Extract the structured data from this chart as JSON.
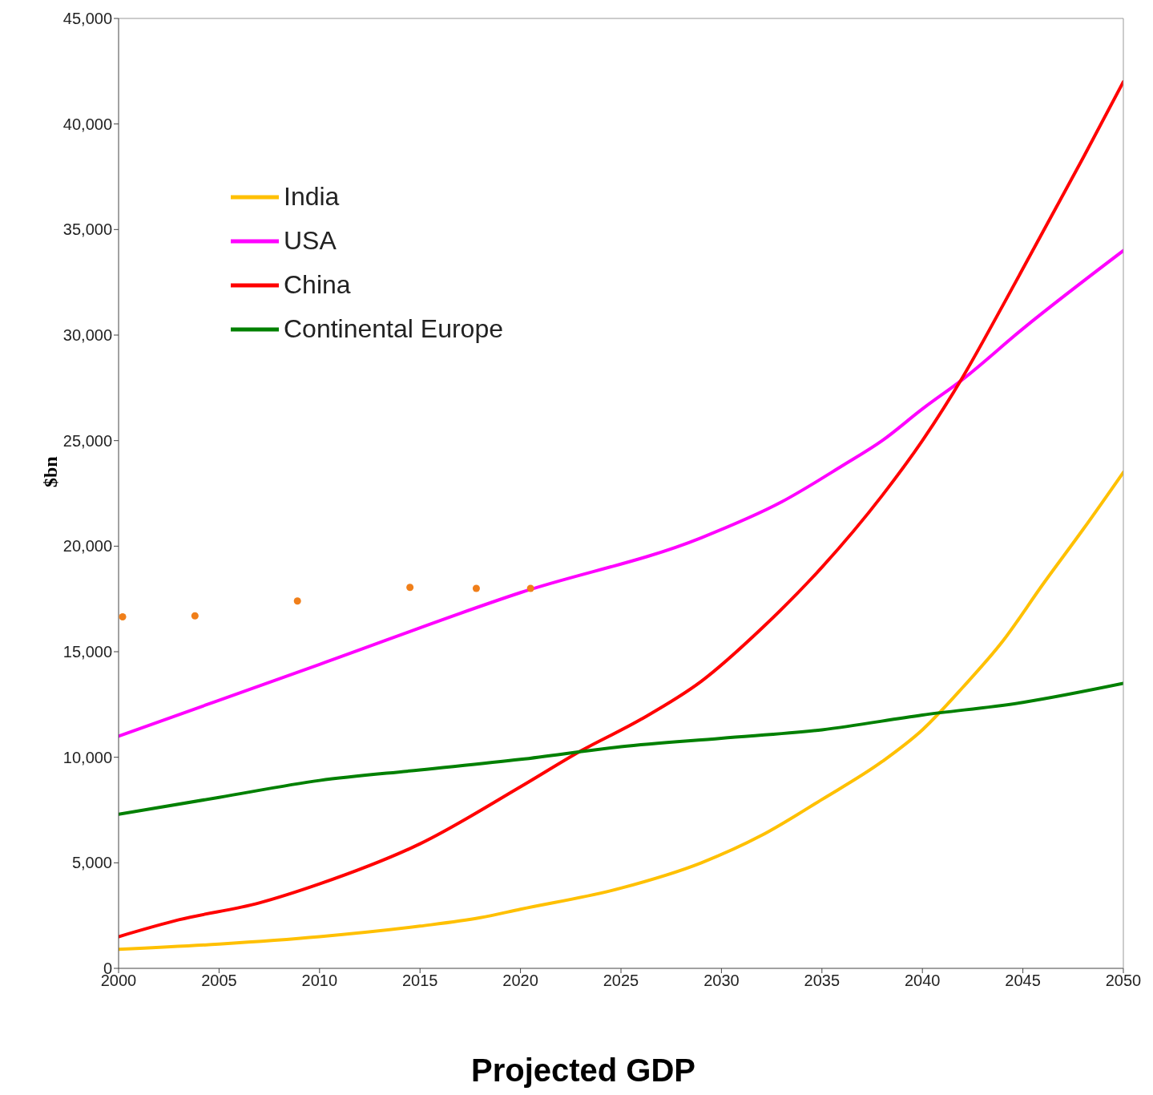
{
  "chart_data": {
    "type": "line",
    "title": "Projected GDP",
    "ylabel": "$bn",
    "xlim": [
      2000,
      2050
    ],
    "xticks": [
      2000,
      2005,
      2010,
      2015,
      2020,
      2025,
      2030,
      2035,
      2040,
      2045,
      2050
    ],
    "ylim": [
      0,
      45000
    ],
    "yticks": [
      0,
      {
        "value": 5000,
        "label": "5,000"
      },
      {
        "value": 10000,
        "label": "10,000"
      },
      {
        "value": 15000,
        "label": "15,000"
      },
      {
        "value": 20000,
        "label": "20,000"
      },
      {
        "value": 25000,
        "label": "25,000"
      },
      {
        "value": 30000,
        "label": "30,000"
      },
      {
        "value": 35000,
        "label": "35,000"
      },
      {
        "value": 40000,
        "label": "40,000"
      },
      {
        "value": 45000,
        "label": "45,000"
      }
    ],
    "legend": "top left",
    "line_style": "solid",
    "series": [
      {
        "name": "India",
        "color": "#ffc000",
        "marker": "none",
        "x": [
          2000,
          2005,
          2010,
          2015,
          2018,
          2020,
          2025,
          2029,
          2032,
          2035,
          2038,
          2040,
          2042,
          2044,
          2046,
          2048,
          2050
        ],
        "values": [
          900,
          1150,
          1500,
          2000,
          2400,
          2800,
          3800,
          5000,
          6300,
          8000,
          9800,
          11300,
          13300,
          15500,
          18200,
          20800,
          23500
        ]
      },
      {
        "name": "USA",
        "color": "#ff00ff",
        "marker": "none",
        "x": [
          2000,
          2010,
          2020,
          2029,
          2033,
          2036,
          2038,
          2040,
          2042,
          2045,
          2050
        ],
        "values": [
          11000,
          14400,
          17800,
          20400,
          22100,
          23800,
          25000,
          26500,
          27900,
          30300,
          34000
        ]
      },
      {
        "name": "China",
        "color": "#ff0000",
        "marker": "none",
        "x": [
          2000,
          2003,
          2007,
          2010,
          2015,
          2020,
          2023,
          2026,
          2029,
          2032,
          2035,
          2038,
          2040,
          2042,
          2044,
          2046,
          2048,
          2050
        ],
        "values": [
          1500,
          2300,
          3100,
          4000,
          5900,
          8600,
          10300,
          11800,
          13600,
          16100,
          19000,
          22400,
          25000,
          28000,
          31400,
          34900,
          38400,
          42000
        ]
      },
      {
        "name": "Continental Europe",
        "color": "#008000",
        "marker": "none",
        "x": [
          2000,
          2005,
          2010,
          2015,
          2020,
          2025,
          2030,
          2035,
          2040,
          2045,
          2050
        ],
        "values": [
          7300,
          8100,
          8900,
          9400,
          9900,
          10500,
          10900,
          11300,
          12000,
          12600,
          13500
        ]
      },
      {
        "type": "scatter",
        "color": "#f07f1a",
        "marker": "circle",
        "x": [
          2000.2,
          2003.8,
          2008.9,
          2014.5,
          2017.8,
          2020.5
        ],
        "values": [
          16650,
          16700,
          17400,
          18050,
          18000,
          18000
        ]
      }
    ]
  }
}
